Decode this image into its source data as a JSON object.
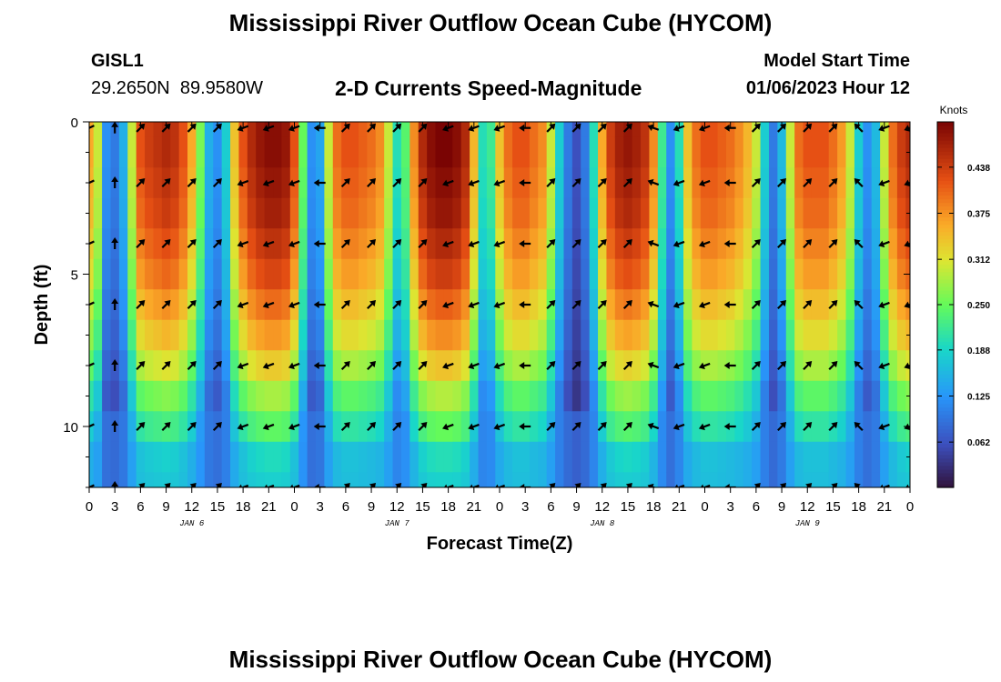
{
  "page": {
    "title": "Mississippi River Outflow Ocean Cube (HYCOM)",
    "title_repeat": "Mississippi River Outflow Ocean Cube (HYCOM)",
    "station_id": "GISL1",
    "station_coords": "29.2650N  89.9580W",
    "subtitle": "2-D Currents Speed-Magnitude",
    "model_start_label": "Model Start Time",
    "model_start_value": "01/06/2023 Hour 12"
  },
  "chart_data": {
    "type": "heatmap",
    "title": "2-D Currents Speed-Magnitude",
    "xlabel": "Forecast Time(Z)",
    "ylabel": "Depth (ft)",
    "xlim": [
      0,
      96
    ],
    "ylim": [
      12,
      0
    ],
    "x_tick_labels": [
      "0",
      "3",
      "6",
      "9",
      "12",
      "15",
      "18",
      "21",
      "0",
      "3",
      "6",
      "9",
      "12",
      "15",
      "18",
      "21",
      "0",
      "3",
      "6",
      "9",
      "12",
      "15",
      "18",
      "21",
      "0",
      "3",
      "6",
      "9",
      "12",
      "15",
      "18",
      "21",
      "0"
    ],
    "y_ticks": [
      0,
      5,
      10
    ],
    "y_tick_labels": [
      "0",
      "5",
      "10"
    ],
    "date_labels": [
      {
        "label": "JAN 6",
        "hour": 12
      },
      {
        "label": "JAN 7",
        "hour": 36
      },
      {
        "label": "JAN 8",
        "hour": 60
      },
      {
        "label": "JAN 9",
        "hour": 84
      }
    ],
    "colorbar": {
      "unit": "Knots",
      "min": 0.0,
      "max": 0.5,
      "ticks": [
        0.062,
        0.125,
        0.188,
        0.25,
        0.312,
        0.375,
        0.438
      ],
      "tick_labels": [
        "0.062",
        "0.125",
        "0.188",
        "0.250",
        "0.312",
        "0.375",
        "0.438"
      ]
    },
    "depth_rows": [
      0,
      1,
      2,
      3,
      4,
      5,
      6,
      7,
      8,
      9,
      10,
      11,
      12
    ],
    "surface_speed_by_hour": [
      [
        0,
        0.36
      ],
      [
        1,
        0.3
      ],
      [
        2,
        0.12
      ],
      [
        3,
        0.1
      ],
      [
        4,
        0.15
      ],
      [
        5,
        0.3
      ],
      [
        6,
        0.42
      ],
      [
        7,
        0.44
      ],
      [
        8,
        0.45
      ],
      [
        9,
        0.46
      ],
      [
        10,
        0.45
      ],
      [
        11,
        0.42
      ],
      [
        12,
        0.36
      ],
      [
        13,
        0.26
      ],
      [
        14,
        0.15
      ],
      [
        15,
        0.12
      ],
      [
        16,
        0.18
      ],
      [
        17,
        0.34
      ],
      [
        18,
        0.42
      ],
      [
        19,
        0.46
      ],
      [
        20,
        0.48
      ],
      [
        21,
        0.49
      ],
      [
        22,
        0.49
      ],
      [
        23,
        0.48
      ],
      [
        24,
        0.42
      ],
      [
        25,
        0.25
      ],
      [
        26,
        0.12
      ],
      [
        27,
        0.14
      ],
      [
        28,
        0.3
      ],
      [
        29,
        0.4
      ],
      [
        30,
        0.42
      ],
      [
        31,
        0.42
      ],
      [
        32,
        0.41
      ],
      [
        33,
        0.4
      ],
      [
        34,
        0.38
      ],
      [
        35,
        0.3
      ],
      [
        36,
        0.2
      ],
      [
        37,
        0.24
      ],
      [
        38,
        0.38
      ],
      [
        39,
        0.46
      ],
      [
        40,
        0.49
      ],
      [
        41,
        0.5
      ],
      [
        42,
        0.5
      ],
      [
        43,
        0.49
      ],
      [
        44,
        0.46
      ],
      [
        45,
        0.35
      ],
      [
        46,
        0.2
      ],
      [
        47,
        0.22
      ],
      [
        48,
        0.34
      ],
      [
        49,
        0.4
      ],
      [
        50,
        0.42
      ],
      [
        51,
        0.42
      ],
      [
        52,
        0.4
      ],
      [
        53,
        0.38
      ],
      [
        54,
        0.3
      ],
      [
        55,
        0.18
      ],
      [
        56,
        0.1
      ],
      [
        57,
        0.06
      ],
      [
        58,
        0.1
      ],
      [
        59,
        0.2
      ],
      [
        60,
        0.36
      ],
      [
        61,
        0.44
      ],
      [
        62,
        0.47
      ],
      [
        63,
        0.48
      ],
      [
        64,
        0.47
      ],
      [
        65,
        0.45
      ],
      [
        66,
        0.38
      ],
      [
        67,
        0.22
      ],
      [
        68,
        0.12
      ],
      [
        69,
        0.2
      ],
      [
        70,
        0.34
      ],
      [
        71,
        0.4
      ],
      [
        72,
        0.42
      ],
      [
        73,
        0.42
      ],
      [
        74,
        0.41
      ],
      [
        75,
        0.4
      ],
      [
        76,
        0.38
      ],
      [
        77,
        0.35
      ],
      [
        78,
        0.3
      ],
      [
        79,
        0.18
      ],
      [
        80,
        0.1
      ],
      [
        81,
        0.16
      ],
      [
        82,
        0.3
      ],
      [
        83,
        0.4
      ],
      [
        84,
        0.42
      ],
      [
        85,
        0.42
      ],
      [
        86,
        0.42
      ],
      [
        87,
        0.4
      ],
      [
        88,
        0.37
      ],
      [
        89,
        0.3
      ],
      [
        90,
        0.18
      ],
      [
        91,
        0.12
      ],
      [
        92,
        0.16
      ],
      [
        93,
        0.3
      ],
      [
        94,
        0.4
      ],
      [
        95,
        0.44
      ],
      [
        96,
        0.46
      ]
    ],
    "depth_factor": [
      1.0,
      1.0,
      0.98,
      0.96,
      0.92,
      0.88,
      0.82,
      0.76,
      0.68,
      0.58,
      0.5,
      0.4,
      0.3
    ],
    "arrow_depths": [
      0.2,
      2.0,
      4.0,
      6.0,
      8.0,
      10.0,
      12.0
    ],
    "arrow_hours": [
      0,
      3,
      6,
      9,
      12,
      15,
      18,
      21,
      24,
      27,
      30,
      33,
      36,
      39,
      42,
      45,
      48,
      51,
      54,
      57,
      60,
      63,
      66,
      69,
      72,
      75,
      78,
      81,
      84,
      87,
      90,
      93,
      96
    ],
    "arrow_direction_deg_by_hour": [
      155,
      270,
      315,
      315,
      315,
      315,
      160,
      160,
      160,
      180,
      315,
      315,
      315,
      315,
      160,
      160,
      160,
      180,
      315,
      315,
      315,
      315,
      200,
      160,
      160,
      180,
      315,
      315,
      315,
      315,
      225,
      160,
      160
    ]
  }
}
